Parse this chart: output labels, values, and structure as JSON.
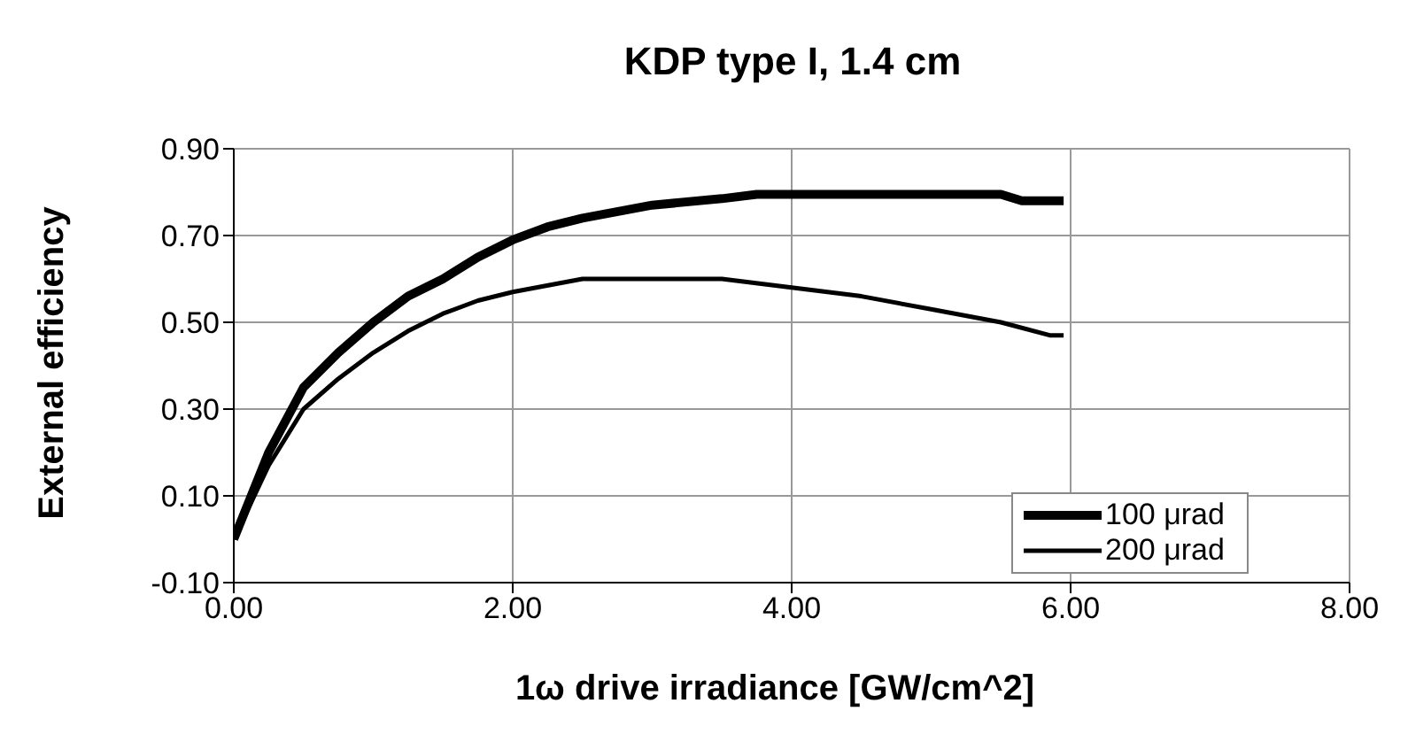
{
  "chart_data": {
    "type": "line",
    "title": "KDP  type I, 1.4 cm",
    "xlabel": "1ω  drive irradiance [GW/cm^2]",
    "ylabel": "External efficiency",
    "xlim": [
      0,
      8
    ],
    "ylim": [
      -0.1,
      0.9
    ],
    "xticks": [
      {
        "value": 0,
        "label": "0.00"
      },
      {
        "value": 2,
        "label": "2.00"
      },
      {
        "value": 4,
        "label": "4.00"
      },
      {
        "value": 6,
        "label": "6.00"
      },
      {
        "value": 8,
        "label": "8.00"
      }
    ],
    "yticks": [
      {
        "value": -0.1,
        "label": "-0.10"
      },
      {
        "value": 0.1,
        "label": "0.10"
      },
      {
        "value": 0.3,
        "label": "0.30"
      },
      {
        "value": 0.5,
        "label": "0.50"
      },
      {
        "value": 0.7,
        "label": "0.70"
      },
      {
        "value": 0.9,
        "label": "0.90"
      }
    ],
    "grid": true,
    "legend": "bottom right",
    "marker": "none",
    "line_style": "solid",
    "series": [
      {
        "name": "100 μrad",
        "color": "#000000",
        "x": [
          0,
          0.25,
          0.5,
          0.75,
          1,
          1.25,
          1.5,
          1.75,
          2,
          2.25,
          2.5,
          3,
          3.5,
          3.75,
          4.5,
          5.5,
          5.65,
          5.95
        ],
        "values": [
          0.0,
          0.2,
          0.35,
          0.43,
          0.5,
          0.56,
          0.6,
          0.65,
          0.69,
          0.72,
          0.74,
          0.77,
          0.785,
          0.795,
          0.795,
          0.795,
          0.78,
          0.78
        ]
      },
      {
        "name": "200 μrad",
        "color": "#000000",
        "x": [
          0,
          0.25,
          0.5,
          0.75,
          1,
          1.25,
          1.5,
          1.75,
          2,
          2.5,
          3,
          3.5,
          4,
          4.5,
          5,
          5.5,
          5.85,
          5.95
        ],
        "values": [
          0.0,
          0.17,
          0.3,
          0.37,
          0.43,
          0.48,
          0.52,
          0.55,
          0.57,
          0.6,
          0.6,
          0.6,
          0.58,
          0.56,
          0.53,
          0.5,
          0.47,
          0.47
        ]
      }
    ]
  }
}
